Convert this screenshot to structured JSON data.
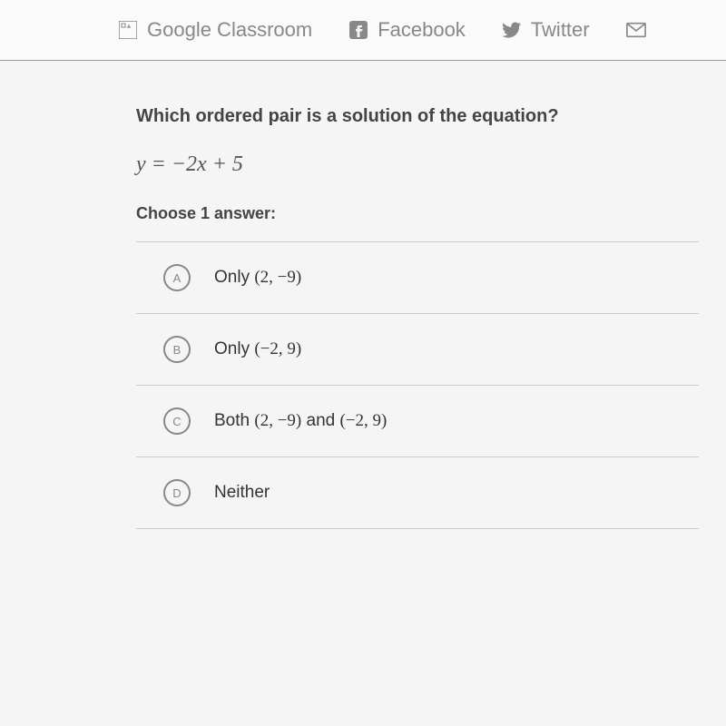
{
  "shareBar": {
    "items": [
      {
        "label": "Google Classroom",
        "icon": "google-classroom"
      },
      {
        "label": "Facebook",
        "icon": "facebook"
      },
      {
        "label": "Twitter",
        "icon": "twitter"
      },
      {
        "label": "",
        "icon": "email"
      }
    ]
  },
  "question": {
    "prompt": "Which ordered pair is a solution of the equation?",
    "equation_html": "<i>y</i> = −2<i>x</i> + 5",
    "chooseLabel": "Choose 1 answer:"
  },
  "answers": [
    {
      "letter": "A",
      "label_html": "Only <span class='math'>(2, −9)</span>"
    },
    {
      "letter": "B",
      "label_html": "Only <span class='math'>(−2, 9)</span>"
    },
    {
      "letter": "C",
      "label_html": "Both <span class='math'>(2, −9)</span> and <span class='math'>(−2, 9)</span>"
    },
    {
      "letter": "D",
      "label_html": "Neither"
    }
  ],
  "colors": {
    "muted_text": "#888888",
    "body_text": "#444444",
    "border": "#cccccc"
  }
}
